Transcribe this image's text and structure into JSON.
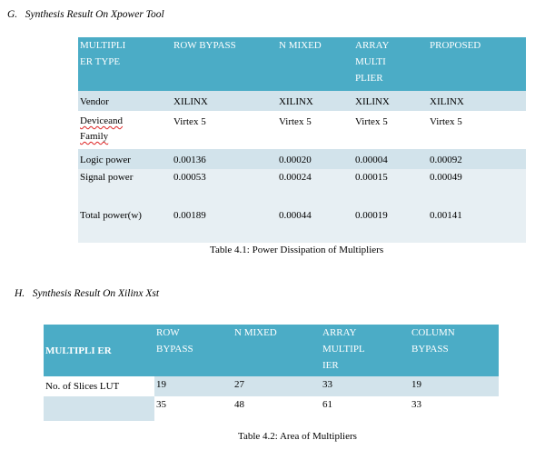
{
  "section_g": {
    "heading": "G.   Synthesis Result On Xpower Tool"
  },
  "table1": {
    "headers": [
      "MULTIPLI\nER TYPE",
      "ROW BYPASS",
      "N MIXED",
      "ARRAY\nMULTI\nPLIER",
      "PROPOSED"
    ],
    "rows": [
      [
        "Vendor",
        "XILINX",
        "XILINX",
        "XILINX",
        "XILINX"
      ],
      [
        "Deviceand\nFamily",
        "Virtex 5",
        "Virtex 5",
        "Virtex 5",
        "Virtex 5"
      ],
      [
        "Logic power",
        "0.00136",
        "0.00020",
        "0.00004",
        "0.00092"
      ],
      [
        "Signal power",
        "0.00053",
        "0.00024",
        "0.00015",
        "0.00049"
      ],
      [
        "Total power(w)",
        "0.00189",
        "0.00044",
        "0.00019",
        "0.00141"
      ]
    ],
    "caption": "Table 4.1: Power Dissipation of Multipliers"
  },
  "section_h": {
    "heading": "H.   Synthesis Result On Xilinx Xst"
  },
  "table2": {
    "headers": [
      "MULTIPLI ER",
      "ROW\nBYPASS",
      "N MIXED",
      "ARRAY\nMULTIPL\nIER",
      "COLUMN\nBYPASS"
    ],
    "rows": [
      [
        "No. of Slices LUT",
        "19",
        "27",
        "33",
        "19"
      ],
      [
        "",
        "35",
        "48",
        "61",
        "33"
      ]
    ],
    "caption": "Table 4.2: Area of Multipliers"
  }
}
